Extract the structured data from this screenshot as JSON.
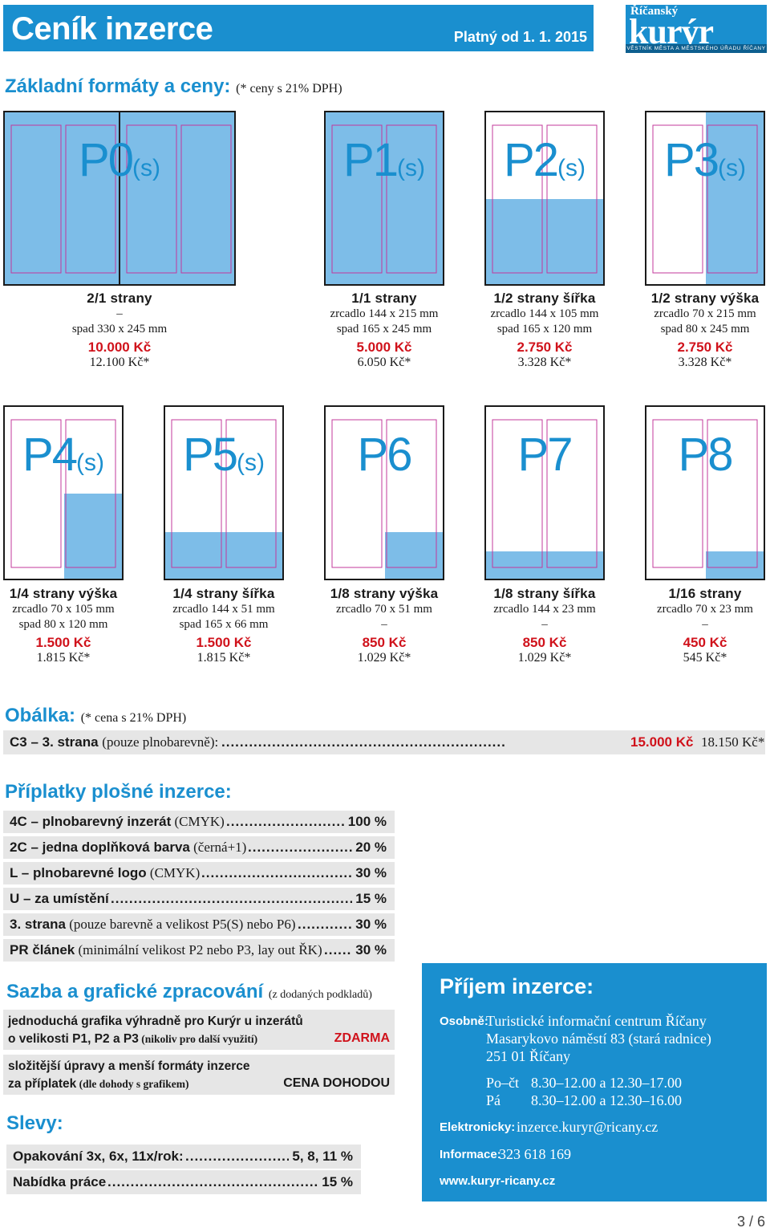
{
  "header": {
    "title": "Ceník inzerce",
    "valid": "Platný od 1. 1. 2015",
    "logo_top": "Říčanský",
    "logo_main": "kurýr",
    "logo_sub": "VĚSTNÍK MĚSTA A MĚSTSKÉHO ÚŘADU ŘÍČANY"
  },
  "basic": {
    "title": "Základní formáty a ceny:",
    "note": "(* ceny s 21% DPH)"
  },
  "formats": [
    {
      "code": "P0",
      "suffix": "(s)",
      "name": "2/1 strany",
      "l1": "–",
      "l2": "spad 330 x 245 mm",
      "price": "10.000 Kč",
      "vat": "12.100 Kč*"
    },
    {
      "code": "P1",
      "suffix": "(s)",
      "name": "1/1 strany",
      "l1": "zrcadlo 144 x 215 mm",
      "l2": "spad 165 x 245 mm",
      "price": "5.000 Kč",
      "vat": "6.050 Kč*"
    },
    {
      "code": "P2",
      "suffix": "(s)",
      "name": "1/2 strany šířka",
      "l1": "zrcadlo 144 x 105 mm",
      "l2": "spad 165 x 120 mm",
      "price": "2.750 Kč",
      "vat": "3.328 Kč*"
    },
    {
      "code": "P3",
      "suffix": "(s)",
      "name": "1/2 strany výška",
      "l1": "zrcadlo 70 x 215 mm",
      "l2": "spad 80 x 245 mm",
      "price": "2.750 Kč",
      "vat": "3.328 Kč*"
    },
    {
      "code": "P4",
      "suffix": "(s)",
      "name": "1/4 strany výška",
      "l1": "zrcadlo 70 x 105 mm",
      "l2": "spad 80 x 120 mm",
      "price": "1.500 Kč",
      "vat": "1.815 Kč*"
    },
    {
      "code": "P5",
      "suffix": "(s)",
      "name": "1/4 strany šířka",
      "l1": "zrcadlo 144 x 51 mm",
      "l2": "spad 165 x 66 mm",
      "price": "1.500 Kč",
      "vat": "1.815 Kč*"
    },
    {
      "code": "P6",
      "suffix": "",
      "name": "1/8 strany výška",
      "l1": "zrcadlo 70 x 51 mm",
      "l2": "–",
      "price": "850 Kč",
      "vat": "1.029 Kč*"
    },
    {
      "code": "P7",
      "suffix": "",
      "name": "1/8 strany šířka",
      "l1": "zrcadlo 144 x 23 mm",
      "l2": "–",
      "price": "850 Kč",
      "vat": "1.029 Kč*"
    },
    {
      "code": "P8",
      "suffix": "",
      "name": "1/16 strany",
      "l1": "zrcadlo 70 x 23 mm",
      "l2": "–",
      "price": "450 Kč",
      "vat": "545 Kč*"
    }
  ],
  "cover": {
    "title": "Obálka:",
    "note": "(* cena s 21% DPH)",
    "label": "C3 – 3. strana",
    "label_note": "(pouze plnobarevně):",
    "price": "15.000 Kč",
    "vat": "18.150 Kč*"
  },
  "surcharges": {
    "title": "Příplatky plošné inzerce:",
    "items": [
      {
        "label": "4C – plnobarevný inzerát",
        "note": " (CMYK)",
        "value": "100 %"
      },
      {
        "label": "2C – jedna doplňková barva",
        "note": " (černá+1)",
        "value": "20 %"
      },
      {
        "label": "L – plnobarevné logo",
        "note": " (CMYK)",
        "value": "30 %"
      },
      {
        "label": "U – za umístění",
        "note": "",
        "value": "15 %"
      },
      {
        "label": "3. strana",
        "note": " (pouze barevně a velikost P5(S) nebo P6)",
        "value": "30 %"
      },
      {
        "label": "PR článek",
        "note": " (minimální velikost P2 nebo P3, lay out ŘK)",
        "value": "30 %"
      }
    ]
  },
  "design": {
    "title": "Sazba a grafické zpracování",
    "note": "(z dodaných podkladů)",
    "r1_a": "jednoduchá grafika výhradně pro Kurýr u inzerátů",
    "r1_b": "o velikosti P1, P2 a P3",
    "r1_note": " (nikoliv pro další využití)",
    "r1_value": "ZDARMA",
    "r2_a": "složitější úpravy a menší formáty inzerce",
    "r2_b": "za příplatek",
    "r2_note": " (dle dohody s grafikem)",
    "r2_value": "CENA DOHODOU"
  },
  "discounts": {
    "title": "Slevy:",
    "items": [
      {
        "label": "Opakování 3x, 6x, 11x/rok:",
        "value": "5, 8, 11 %"
      },
      {
        "label": "Nabídka práce",
        "value": "15 %"
      }
    ]
  },
  "contact": {
    "title": "Příjem inzerce:",
    "osobne_label": "Osobně:",
    "osobne_1": "Turistické informační centrum Říčany",
    "osobne_2": "Masarykovo náměstí 83 (stará radnice)",
    "osobne_3": "251 01 Říčany",
    "hours_1_day": "Po–čt",
    "hours_1": "8.30–12.00 a 12.30–17.00",
    "hours_2_day": "Pá",
    "hours_2": "8.30–12.00 a 12.30–16.00",
    "el_label": "Elektronicky:",
    "el_value": "inzerce.kuryr@ricany.cz",
    "inf_label": "Informace:",
    "inf_value": "323 618 169",
    "web": "www.kuryr-ricany.cz"
  },
  "page": "3 / 6",
  "colors": {
    "accent": "#1a8fcf",
    "price": "#d0121b",
    "fill": "#7dbde8",
    "row": "#e6e6e6"
  }
}
